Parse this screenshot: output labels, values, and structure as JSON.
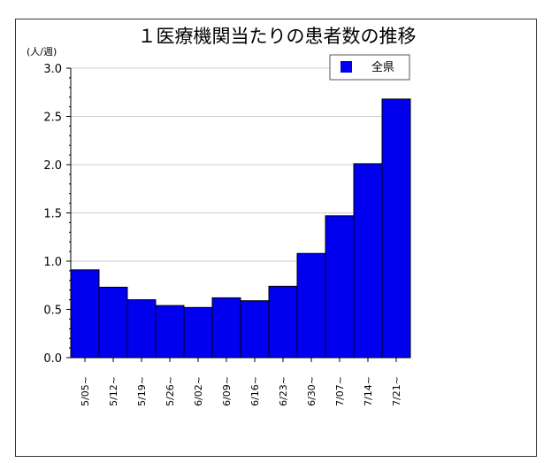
{
  "chart_data": {
    "type": "bar",
    "title": "１医療機関当たりの患者数の推移",
    "ylabel": "(人/週)",
    "xlabel": "",
    "categories": [
      "5/05~",
      "5/12~",
      "5/19~",
      "5/26~",
      "6/02~",
      "6/09~",
      "6/16~",
      "6/23~",
      "6/30~",
      "7/07~",
      "7/14~",
      "7/21~"
    ],
    "series": [
      {
        "name": "全県",
        "color": "#0000ee",
        "values": [
          0.91,
          0.73,
          0.6,
          0.54,
          0.52,
          0.62,
          0.59,
          0.74,
          1.08,
          1.47,
          2.01,
          2.68
        ]
      }
    ],
    "ylim": [
      0,
      3.0
    ],
    "yticks": [
      "0.0",
      "0.5",
      "1.0",
      "1.5",
      "2.0",
      "2.5",
      "3.0"
    ],
    "grid": true,
    "legend_position": "top-right"
  }
}
